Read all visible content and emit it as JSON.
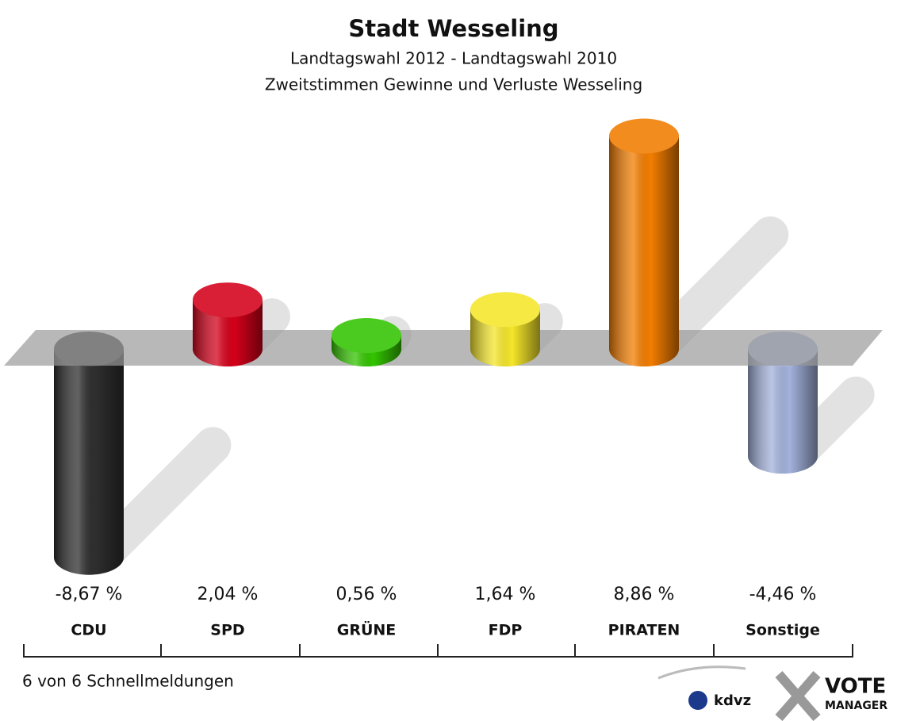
{
  "chart_data": {
    "type": "bar",
    "title": "Stadt Wesseling",
    "subtitle": "Landtagswahl 2012 - Landtagswahl 2010",
    "subtitle2": "Zweitstimmen Gewinne und Verluste Wesseling",
    "categories": [
      "CDU",
      "SPD",
      "GRÜNE",
      "FDP",
      "PIRATEN",
      "Sonstige"
    ],
    "values": [
      -8.67,
      2.04,
      0.56,
      1.64,
      8.86,
      -4.46
    ],
    "value_labels": [
      "-8,67 %",
      "2,04 %",
      "0,56 %",
      "1,64 %",
      "8,86 %",
      "-4,46 %"
    ],
    "colors": [
      "#2e2e2e",
      "#d4001a",
      "#33c400",
      "#f5e62a",
      "#f27d00",
      "#a3b2dc"
    ],
    "ylim": [
      -10,
      10
    ],
    "footer": "6 von 6 Schnellmeldungen",
    "logos": [
      "kdvz",
      "VOTE",
      "MANAGER"
    ]
  }
}
